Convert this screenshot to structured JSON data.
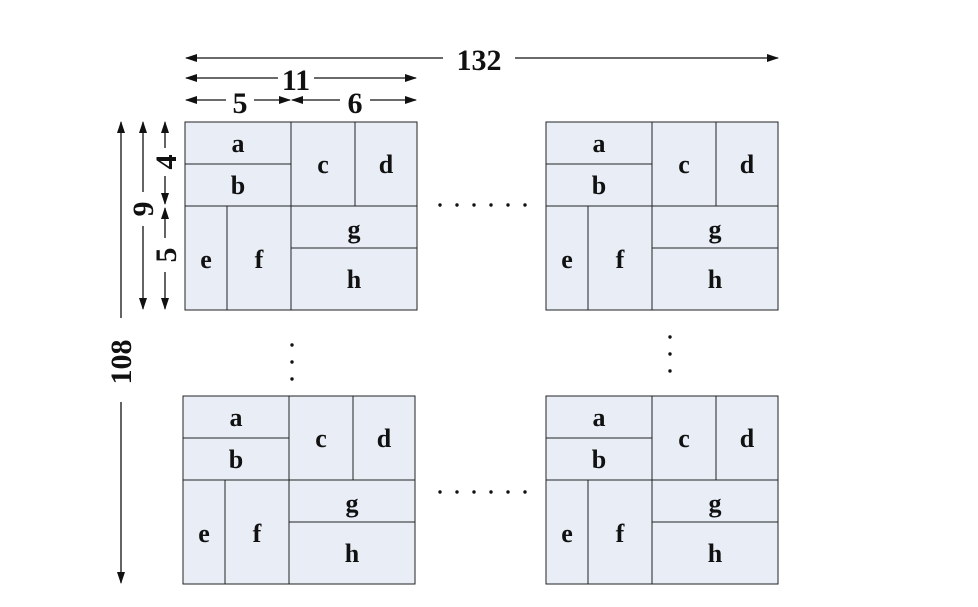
{
  "diagram": {
    "block_labels": {
      "a": "a",
      "b": "b",
      "c": "c",
      "d": "d",
      "e": "e",
      "f": "f",
      "g": "g",
      "h": "h"
    },
    "dimensions": {
      "total_width": "132",
      "block_width": "11",
      "left_part_width": "5",
      "right_part_width": "6",
      "total_height": "108",
      "block_height": "9",
      "upper_part_height": "4",
      "lower_part_height": "5"
    },
    "colors": {
      "cell_fill": "#e8edf6",
      "stroke": "#222222"
    }
  }
}
